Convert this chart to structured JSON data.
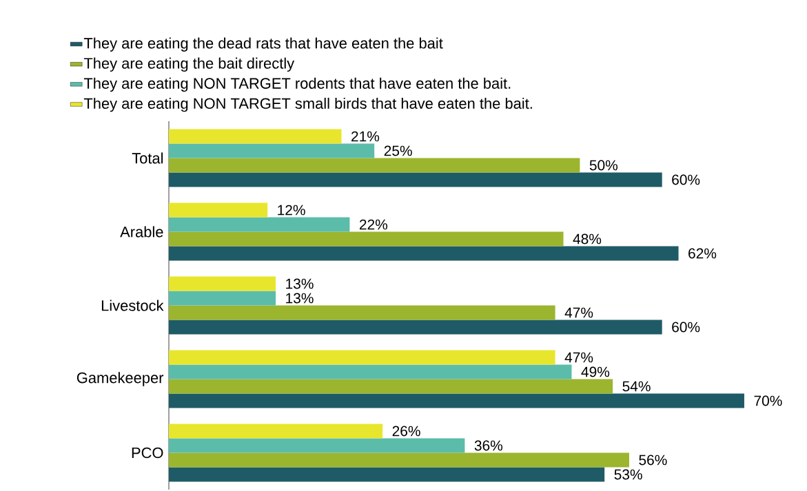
{
  "chart_data": {
    "type": "bar",
    "orientation": "horizontal",
    "legend": "top",
    "categories": [
      "Total",
      "Arable",
      "Livestock",
      "Gamekeeper",
      "PCO"
    ],
    "series": [
      {
        "name": "They are eating the dead rats that have eaten the bait",
        "color": "#1f5b66",
        "values": [
          60,
          62,
          60,
          70,
          53
        ],
        "value_labels": [
          "60%",
          "62%",
          "60%",
          "70%",
          "53%"
        ]
      },
      {
        "name": "They are eating the bait directly",
        "color": "#9bb52f",
        "values": [
          50,
          48,
          47,
          54,
          56
        ],
        "value_labels": [
          "50%",
          "48%",
          "47%",
          "54%",
          "56%"
        ]
      },
      {
        "name": "They are eating NON TARGET rodents that have eaten the bait.",
        "color": "#5bbcaa",
        "values": [
          25,
          22,
          13,
          49,
          36
        ],
        "value_labels": [
          "25%",
          "22%",
          "13%",
          "49%",
          "36%"
        ]
      },
      {
        "name": "They are eating NON TARGET small birds that have eaten the bait.",
        "color": "#e8e62c",
        "values": [
          21,
          12,
          13,
          47,
          26
        ],
        "value_labels": [
          "21%",
          "12%",
          "13%",
          "47%",
          "26%"
        ]
      }
    ]
  }
}
